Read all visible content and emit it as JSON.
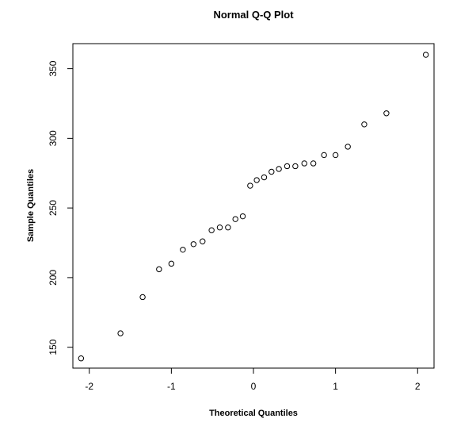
{
  "chart_data": {
    "type": "scatter",
    "title": "Normal Q-Q Plot",
    "xlabel": "Theoretical Quantiles",
    "ylabel": "Sample Quantiles",
    "xlim": [
      -2.2,
      2.2
    ],
    "ylim": [
      135,
      368
    ],
    "xticks": [
      -2,
      -1,
      0,
      1,
      2
    ],
    "xtick_labels": [
      "-2",
      "-1",
      "0",
      "1",
      "2"
    ],
    "yticks": [
      150,
      200,
      250,
      300,
      350
    ],
    "ytick_labels": [
      "150",
      "200",
      "250",
      "300",
      "350"
    ],
    "grid": false,
    "marker": "open-circle",
    "points": [
      {
        "x": -2.1,
        "y": 142
      },
      {
        "x": -1.62,
        "y": 160
      },
      {
        "x": -1.35,
        "y": 186
      },
      {
        "x": -1.15,
        "y": 206
      },
      {
        "x": -1.0,
        "y": 210
      },
      {
        "x": -0.86,
        "y": 220
      },
      {
        "x": -0.73,
        "y": 224
      },
      {
        "x": -0.62,
        "y": 226
      },
      {
        "x": -0.51,
        "y": 234
      },
      {
        "x": -0.41,
        "y": 236
      },
      {
        "x": -0.31,
        "y": 236
      },
      {
        "x": -0.22,
        "y": 242
      },
      {
        "x": -0.13,
        "y": 244
      },
      {
        "x": -0.04,
        "y": 266
      },
      {
        "x": 0.04,
        "y": 270
      },
      {
        "x": 0.13,
        "y": 272
      },
      {
        "x": 0.22,
        "y": 276
      },
      {
        "x": 0.31,
        "y": 278
      },
      {
        "x": 0.41,
        "y": 280
      },
      {
        "x": 0.51,
        "y": 280
      },
      {
        "x": 0.62,
        "y": 282
      },
      {
        "x": 0.73,
        "y": 282
      },
      {
        "x": 0.86,
        "y": 288
      },
      {
        "x": 1.0,
        "y": 288
      },
      {
        "x": 1.15,
        "y": 294
      },
      {
        "x": 1.35,
        "y": 310
      },
      {
        "x": 1.62,
        "y": 318
      },
      {
        "x": 2.1,
        "y": 360
      }
    ]
  }
}
